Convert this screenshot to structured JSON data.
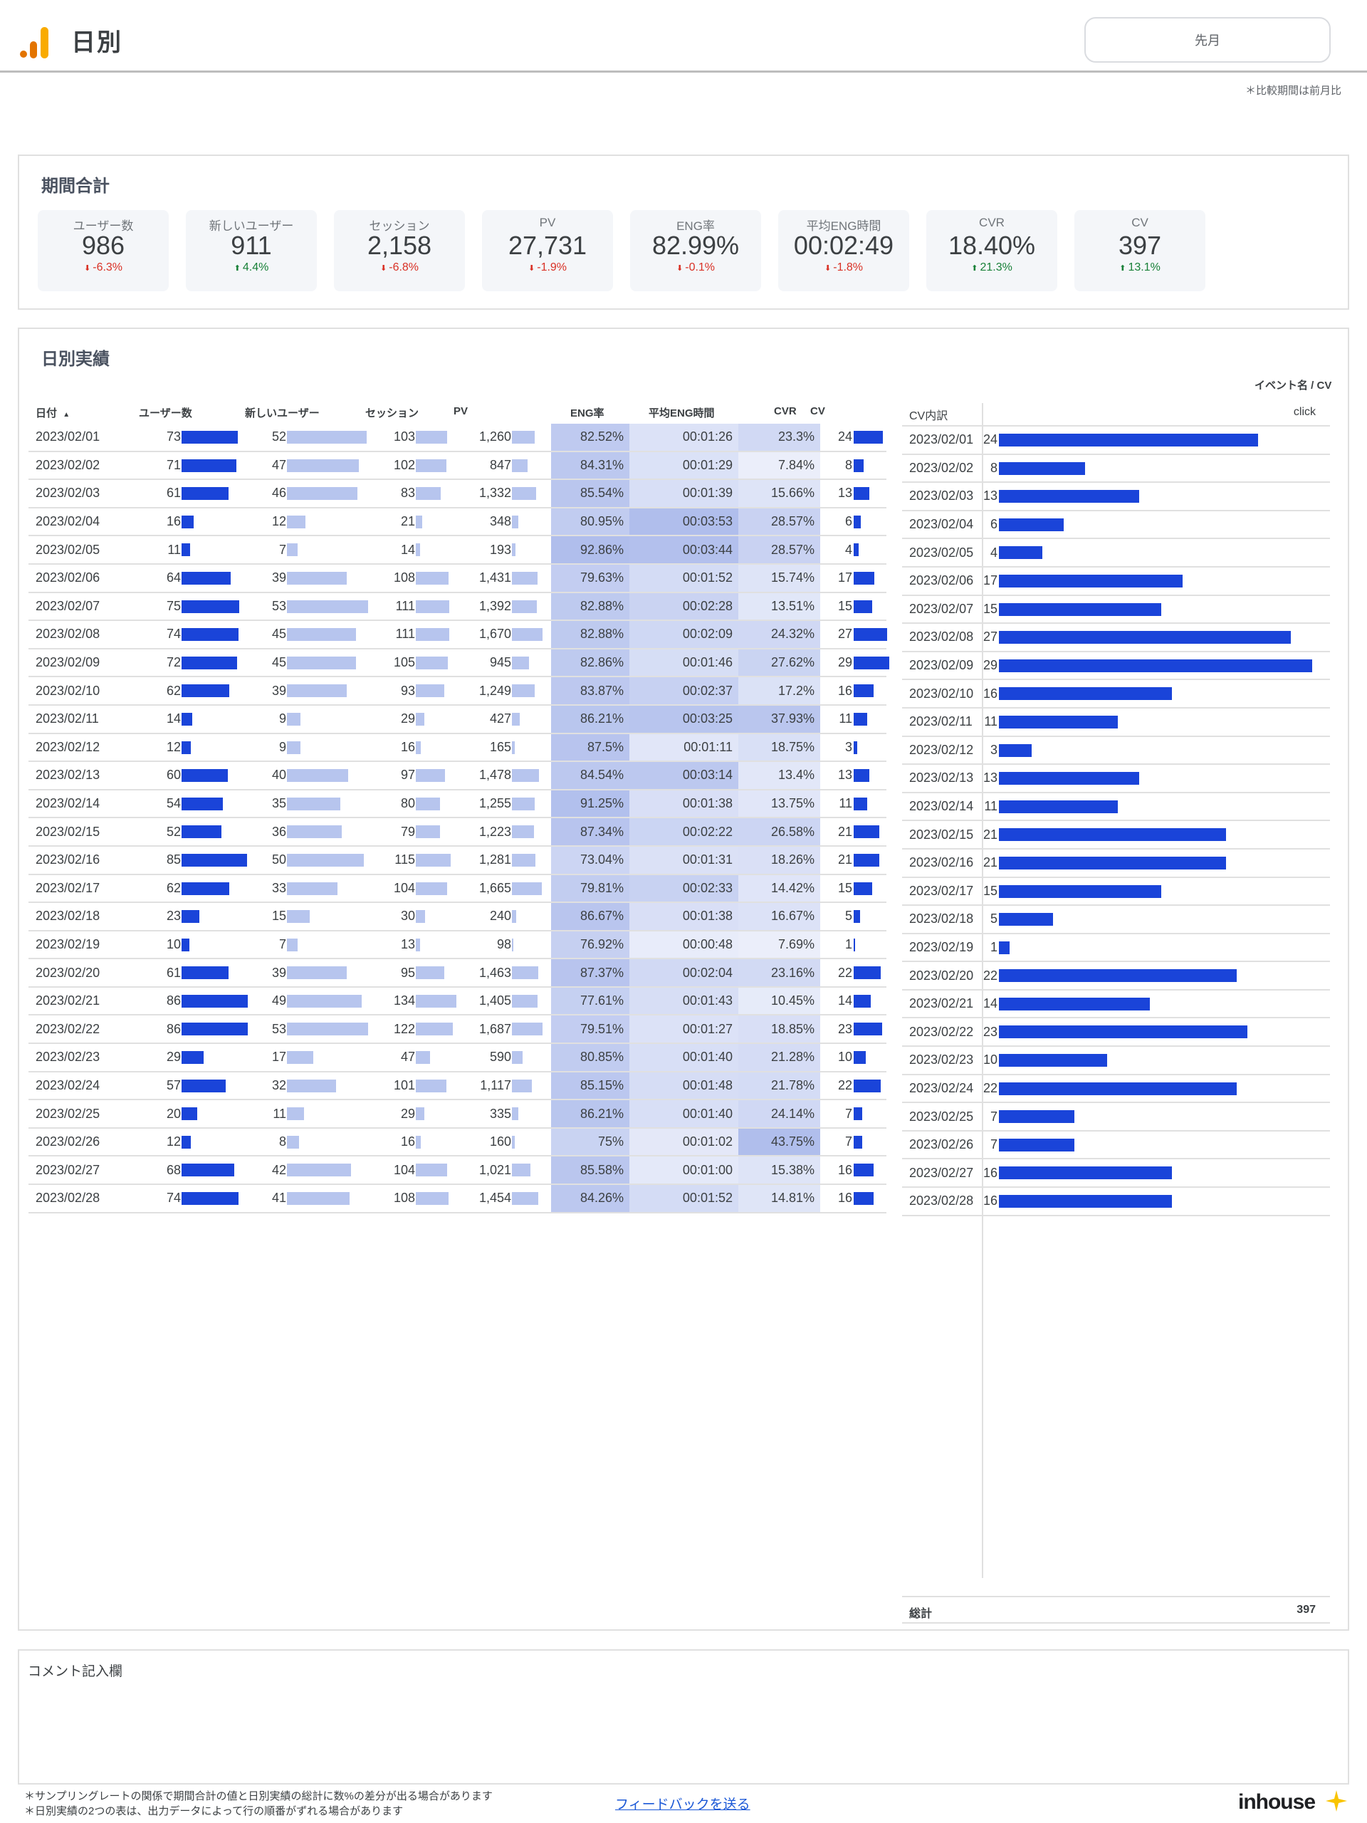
{
  "header": {
    "title": "日別",
    "period": "先月",
    "compare_note": "＊比較期間は前月比"
  },
  "summary": {
    "title": "期間合計",
    "kpis": [
      {
        "label": "ユーザー数",
        "value": "986",
        "delta": "-6.3%",
        "dir": "down"
      },
      {
        "label": "新しいユーザー",
        "value": "911",
        "delta": "4.4%",
        "dir": "up"
      },
      {
        "label": "セッション",
        "value": "2,158",
        "delta": "-6.8%",
        "dir": "down"
      },
      {
        "label": "PV",
        "value": "27,731",
        "delta": "-1.9%",
        "dir": "down"
      },
      {
        "label": "ENG率",
        "value": "82.99%",
        "delta": "-0.1%",
        "dir": "down"
      },
      {
        "label": "平均ENG時間",
        "value": "00:02:49",
        "delta": "-1.8%",
        "dir": "down"
      },
      {
        "label": "CVR",
        "value": "18.40%",
        "delta": "21.3%",
        "dir": "up"
      },
      {
        "label": "CV",
        "value": "397",
        "delta": "13.1%",
        "dir": "up"
      }
    ]
  },
  "daily": {
    "title": "日別実績",
    "columns": {
      "date": "日付",
      "sort": "▲",
      "users": "ユーザー数",
      "new_users": "新しいユーザー",
      "sessions": "セッション",
      "pv": "PV",
      "eng": "ENG率",
      "eng_time": "平均ENG時間",
      "cvr": "CVR",
      "cv": "CV"
    },
    "rows": [
      [
        "2023/02/01",
        73,
        52,
        103,
        "1,260",
        "82.52%",
        "00:01:26",
        "23.3%",
        24
      ],
      [
        "2023/02/02",
        71,
        47,
        102,
        "847",
        "84.31%",
        "00:01:29",
        "7.84%",
        8
      ],
      [
        "2023/02/03",
        61,
        46,
        83,
        "1,332",
        "85.54%",
        "00:01:39",
        "15.66%",
        13
      ],
      [
        "2023/02/04",
        16,
        12,
        21,
        "348",
        "80.95%",
        "00:03:53",
        "28.57%",
        6
      ],
      [
        "2023/02/05",
        11,
        7,
        14,
        "193",
        "92.86%",
        "00:03:44",
        "28.57%",
        4
      ],
      [
        "2023/02/06",
        64,
        39,
        108,
        "1,431",
        "79.63%",
        "00:01:52",
        "15.74%",
        17
      ],
      [
        "2023/02/07",
        75,
        53,
        111,
        "1,392",
        "82.88%",
        "00:02:28",
        "13.51%",
        15
      ],
      [
        "2023/02/08",
        74,
        45,
        111,
        "1,670",
        "82.88%",
        "00:02:09",
        "24.32%",
        27
      ],
      [
        "2023/02/09",
        72,
        45,
        105,
        "945",
        "82.86%",
        "00:01:46",
        "27.62%",
        29
      ],
      [
        "2023/02/10",
        62,
        39,
        93,
        "1,249",
        "83.87%",
        "00:02:37",
        "17.2%",
        16
      ],
      [
        "2023/02/11",
        14,
        9,
        29,
        "427",
        "86.21%",
        "00:03:25",
        "37.93%",
        11
      ],
      [
        "2023/02/12",
        12,
        9,
        16,
        "165",
        "87.5%",
        "00:01:11",
        "18.75%",
        3
      ],
      [
        "2023/02/13",
        60,
        40,
        97,
        "1,478",
        "84.54%",
        "00:03:14",
        "13.4%",
        13
      ],
      [
        "2023/02/14",
        54,
        35,
        80,
        "1,255",
        "91.25%",
        "00:01:38",
        "13.75%",
        11
      ],
      [
        "2023/02/15",
        52,
        36,
        79,
        "1,223",
        "87.34%",
        "00:02:22",
        "26.58%",
        21
      ],
      [
        "2023/02/16",
        85,
        50,
        115,
        "1,281",
        "73.04%",
        "00:01:31",
        "18.26%",
        21
      ],
      [
        "2023/02/17",
        62,
        33,
        104,
        "1,665",
        "79.81%",
        "00:02:33",
        "14.42%",
        15
      ],
      [
        "2023/02/18",
        23,
        15,
        30,
        "240",
        "86.67%",
        "00:01:38",
        "16.67%",
        5
      ],
      [
        "2023/02/19",
        10,
        7,
        13,
        "98",
        "76.92%",
        "00:00:48",
        "7.69%",
        1
      ],
      [
        "2023/02/20",
        61,
        39,
        95,
        "1,463",
        "87.37%",
        "00:02:04",
        "23.16%",
        22
      ],
      [
        "2023/02/21",
        86,
        49,
        134,
        "1,405",
        "77.61%",
        "00:01:43",
        "10.45%",
        14
      ],
      [
        "2023/02/22",
        86,
        53,
        122,
        "1,687",
        "79.51%",
        "00:01:27",
        "18.85%",
        23
      ],
      [
        "2023/02/23",
        29,
        17,
        47,
        "590",
        "80.85%",
        "00:01:40",
        "21.28%",
        10
      ],
      [
        "2023/02/24",
        57,
        32,
        101,
        "1,117",
        "85.15%",
        "00:01:48",
        "21.78%",
        22
      ],
      [
        "2023/02/25",
        20,
        11,
        29,
        "335",
        "86.21%",
        "00:01:40",
        "24.14%",
        7
      ],
      [
        "2023/02/26",
        12,
        8,
        16,
        "160",
        "75%",
        "00:01:02",
        "43.75%",
        7
      ],
      [
        "2023/02/27",
        68,
        42,
        104,
        "1,021",
        "85.58%",
        "00:01:00",
        "15.38%",
        16
      ],
      [
        "2023/02/28",
        74,
        41,
        108,
        "1,454",
        "84.26%",
        "00:01:52",
        "14.81%",
        16
      ]
    ]
  },
  "cv_breakdown": {
    "header_right": "イベント名 / CV",
    "col_label": "CV内訳",
    "col_event": "click",
    "total_label": "総計",
    "total_value": "397"
  },
  "comment": {
    "title": "コメント記入欄"
  },
  "footer": {
    "note1": "＊サンプリングレートの関係で期間合計の値と日別実績の総計に数%の差分が出る場合があります",
    "note2": "＊日別実績の2つの表は、出力データによって行の順番がずれる場合があります",
    "feedback": "フィードバックを送る",
    "brand": "inhouse"
  },
  "colors": {
    "bar_dark": "#1a44d9",
    "bar_light": "#b7c5ee",
    "up": "#188038",
    "down": "#d93025",
    "accent": "#f9ab00"
  }
}
